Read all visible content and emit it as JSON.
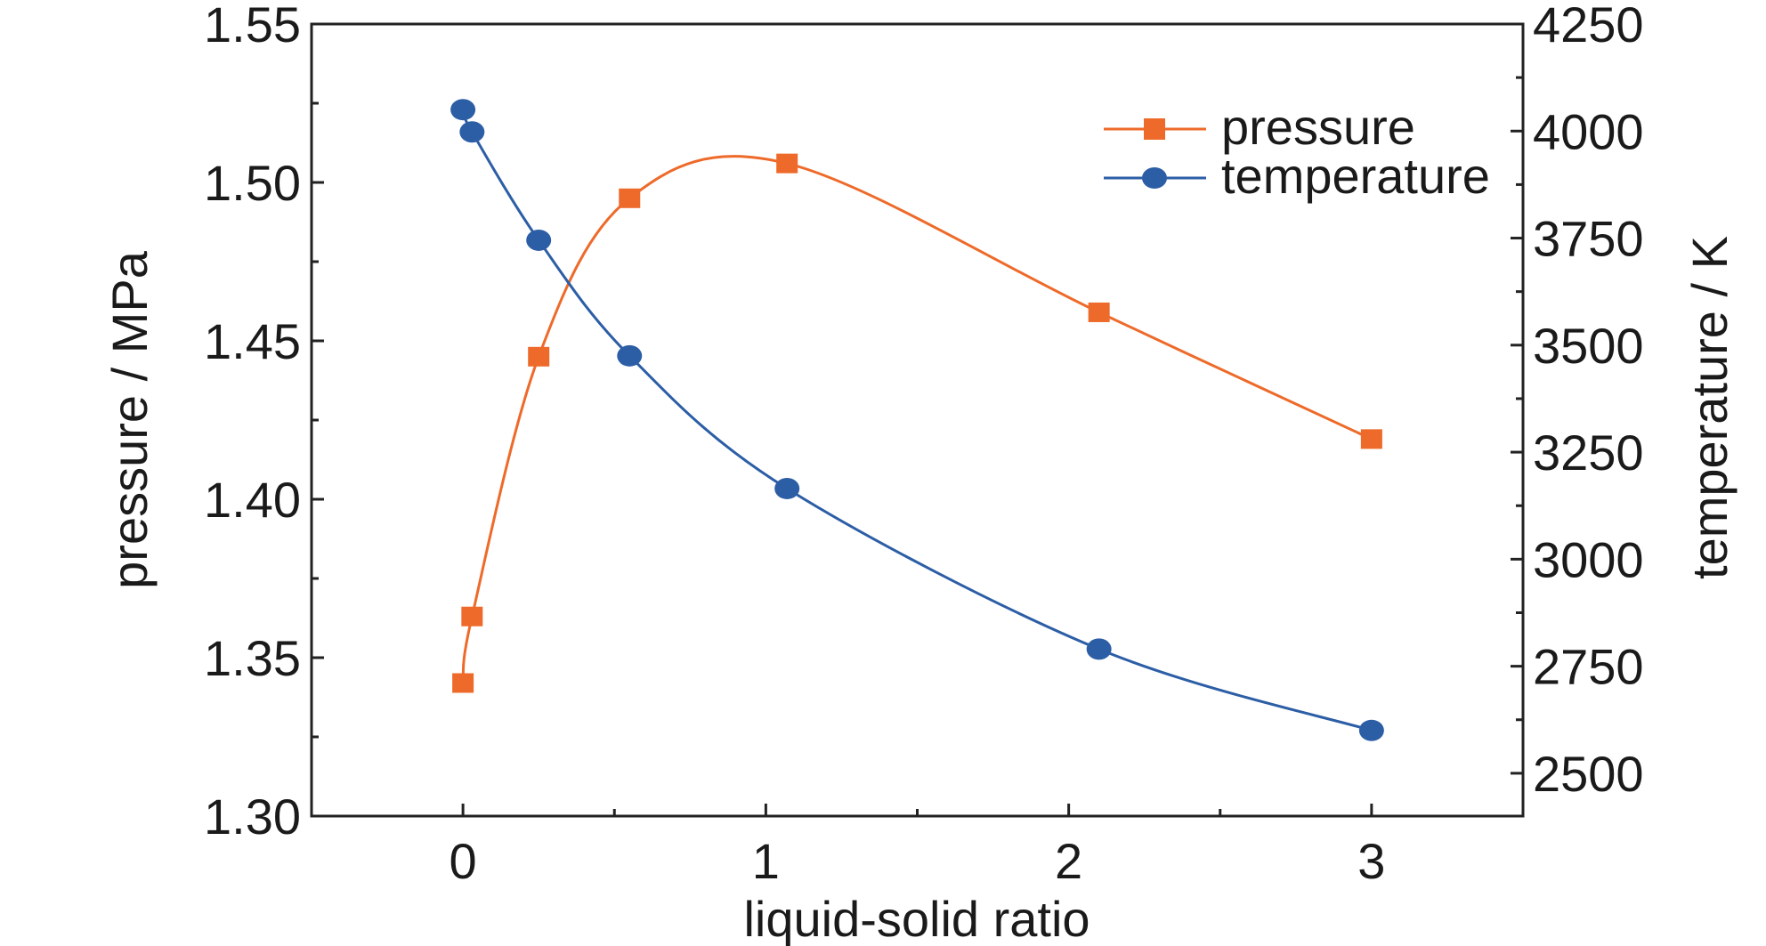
{
  "chart_data": {
    "type": "line",
    "title": "",
    "xlabel": "liquid-solid ratio",
    "ylabel_left": "pressure / MPa",
    "ylabel_right": "temperature / K",
    "xlim": [
      -0.5,
      3.5
    ],
    "ylim_left": [
      1.3,
      1.55
    ],
    "ylim_right": [
      2400,
      4250
    ],
    "x_ticks": [
      0,
      1,
      2,
      3
    ],
    "x_tick_labels": [
      "0",
      "1",
      "2",
      "3"
    ],
    "y_left_ticks": [
      1.3,
      1.35,
      1.4,
      1.45,
      1.5,
      1.55
    ],
    "y_left_tick_labels": [
      "1.30",
      "1.35",
      "1.40",
      "1.45",
      "1.50",
      "1.55"
    ],
    "y_right_ticks": [
      2500,
      2750,
      3000,
      3250,
      3500,
      3750,
      4000,
      4250
    ],
    "y_right_tick_labels": [
      "2500",
      "2750",
      "3000",
      "3250",
      "3500",
      "3750",
      "4000",
      "4250"
    ],
    "grid": false,
    "legend_position": "top-right",
    "series": [
      {
        "name": "pressure",
        "axis": "left",
        "color": "#ee6a2a",
        "marker": "square",
        "x": [
          0.0,
          0.03,
          0.25,
          0.55,
          1.07,
          2.1,
          3.0
        ],
        "y": [
          1.342,
          1.363,
          1.445,
          1.495,
          1.506,
          1.459,
          1.419
        ]
      },
      {
        "name": "temperature",
        "axis": "right",
        "color": "#2c5ea6",
        "marker": "circle",
        "x": [
          0.0,
          0.03,
          0.25,
          0.55,
          1.07,
          2.1,
          3.0
        ],
        "y": [
          4050,
          3998,
          3745,
          3475,
          3165,
          2790,
          2600
        ]
      }
    ]
  }
}
